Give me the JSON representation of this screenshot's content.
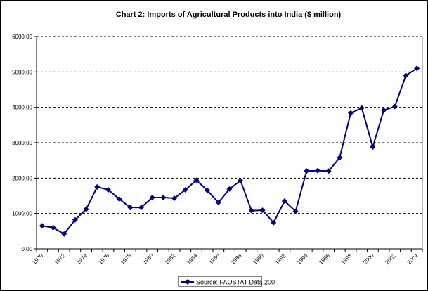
{
  "chart_data": {
    "type": "line",
    "title": "Chart 2: Imports of Agricultural Products into India ($ million)",
    "xlabel": "",
    "ylabel": "",
    "ylim": [
      0,
      6000
    ],
    "y_ticks": [
      "0.00",
      "1000.00",
      "2000.00",
      "3000.00",
      "4000.00",
      "5000.00",
      "6000.00"
    ],
    "x_tick_labels": [
      "1970",
      "1972",
      "1974",
      "1976",
      "1978",
      "1980",
      "1982",
      "1984",
      "1986",
      "1988",
      "1990",
      "1992",
      "1994",
      "1996",
      "1998",
      "2000",
      "2002",
      "2004"
    ],
    "grid": "horizontal dashed",
    "legend_position": "bottom",
    "x": [
      1970,
      1971,
      1972,
      1973,
      1974,
      1975,
      1976,
      1977,
      1978,
      1979,
      1980,
      1981,
      1982,
      1983,
      1984,
      1985,
      1986,
      1987,
      1988,
      1989,
      1990,
      1991,
      1992,
      1993,
      1994,
      1995,
      1996,
      1997,
      1998,
      1999,
      2000,
      2001,
      2002,
      2003,
      2004
    ],
    "series": [
      {
        "name": "Source: FAOSTAT Data 200",
        "color": "#000080",
        "values": [
          650,
          600,
          420,
          820,
          1120,
          1750,
          1670,
          1410,
          1170,
          1170,
          1450,
          1450,
          1430,
          1670,
          1940,
          1650,
          1310,
          1690,
          1930,
          1080,
          1090,
          740,
          1350,
          1060,
          2200,
          2210,
          2200,
          2580,
          3840,
          3980,
          2880,
          3920,
          4020,
          4900,
          5100
        ]
      }
    ]
  }
}
